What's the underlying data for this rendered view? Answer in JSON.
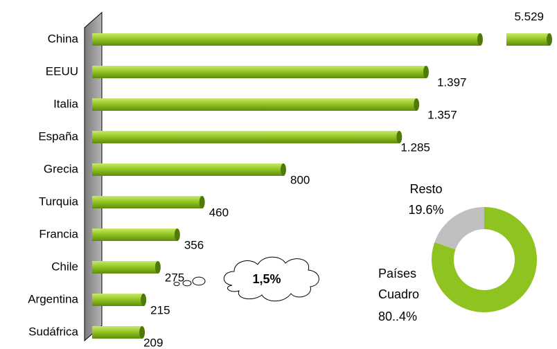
{
  "chart_data": [
    {
      "type": "bar",
      "categories": [
        "China",
        "EEUU",
        "Italia",
        "España",
        "Grecia",
        "Turquia",
        "Francia",
        "Chile",
        "Argentina",
        "Sudáfrica"
      ],
      "values": [
        5529,
        1397,
        1357,
        1285,
        800,
        460,
        356,
        275,
        215,
        209
      ],
      "value_labels": [
        "5.529",
        "1.397",
        "1.357",
        "1.285",
        "800",
        "460",
        "356",
        "275",
        "215",
        "209"
      ],
      "color": "#8fc31f",
      "annotations": [
        {
          "text": "1,5%",
          "color": "#f5a623"
        }
      ]
    },
    {
      "type": "donut",
      "categories": [
        "Países Cuadro",
        "Resto"
      ],
      "values": [
        80.4,
        19.6
      ],
      "value_labels": [
        "80..4%",
        "19.6%"
      ],
      "colors": [
        "#8fc31f",
        "#c0c0c0"
      ]
    }
  ]
}
